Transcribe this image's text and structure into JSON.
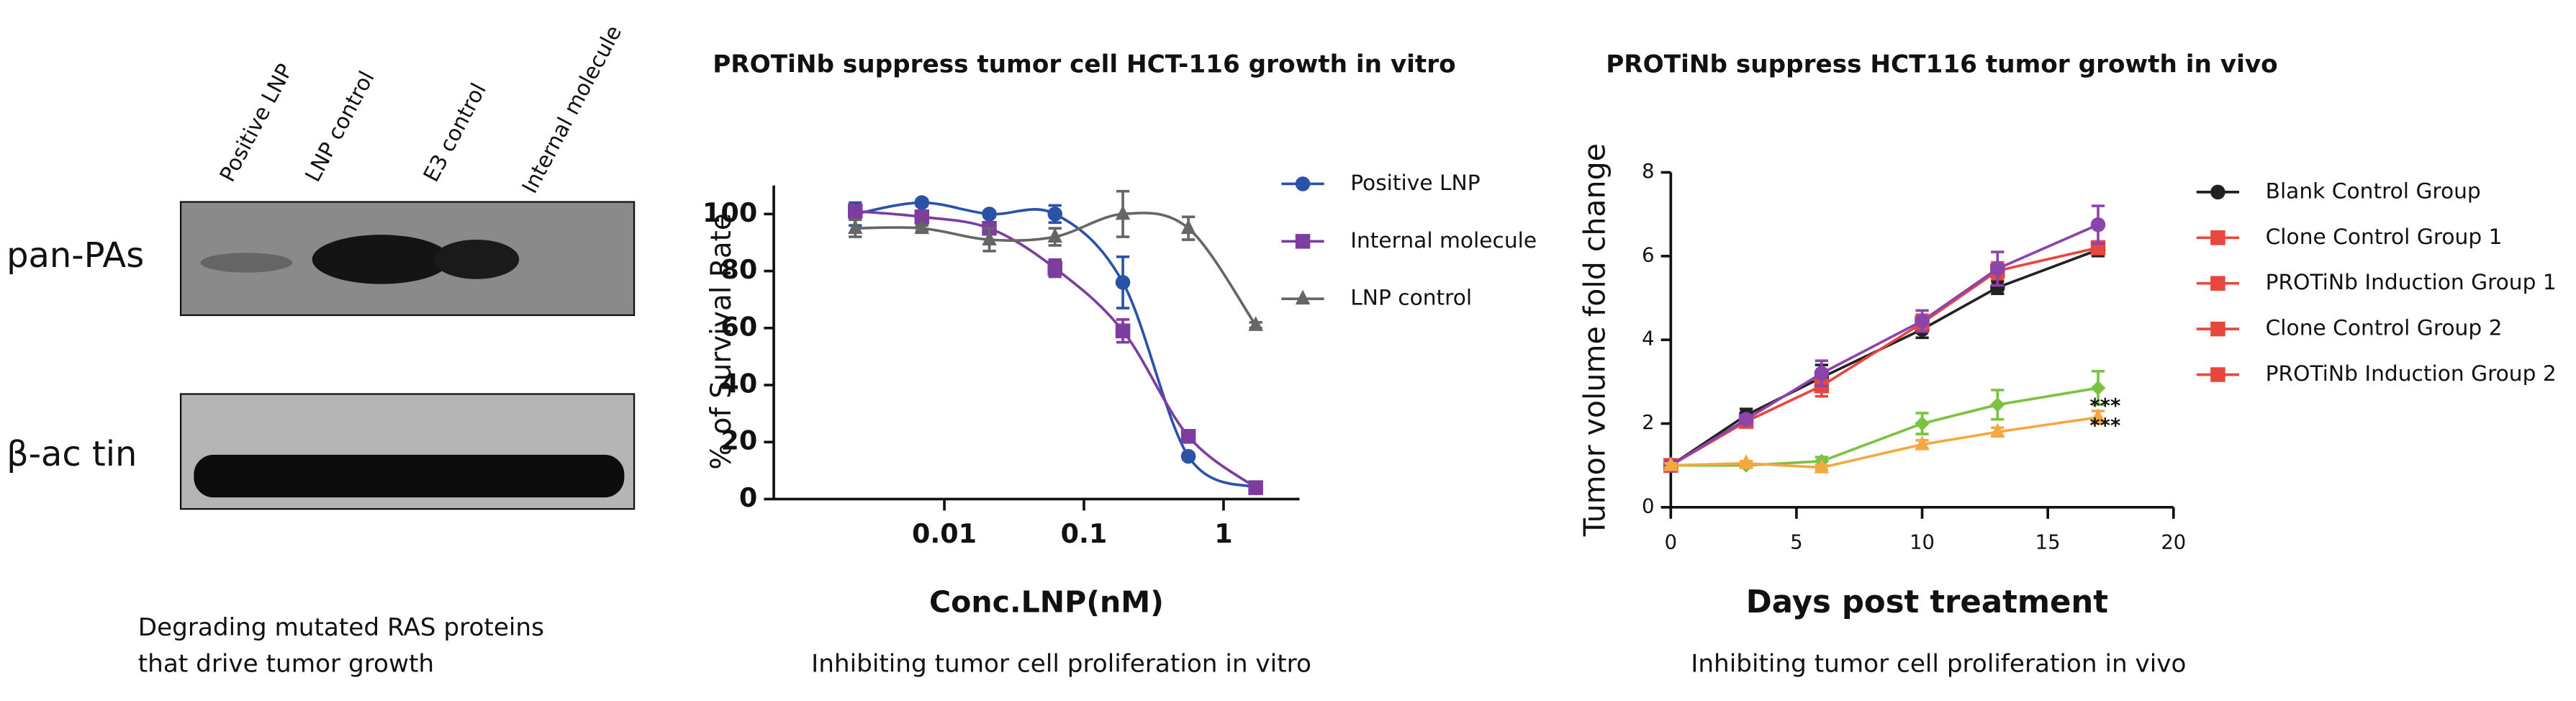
{
  "blot": {
    "lanes": [
      "Positive LNP",
      "LNP control",
      "E3 control",
      "Internal molecule"
    ],
    "rows": [
      "pan-PAs",
      "β-ac tin"
    ],
    "caption": [
      "Degrading mutated RAS proteins",
      "that drive tumor growth"
    ]
  },
  "chart_data": [
    {
      "type": "line",
      "title": "PROTiNb suppress tumor cell HCT-116 growth in vitro",
      "x_label": "Conc.LNP(nM)",
      "y_label": "% of Survival Rate",
      "caption": "Inhibiting tumor cell proliferation in vitro",
      "xscale": "log",
      "smooth": true,
      "x": [
        0.0023,
        0.0069,
        0.021,
        0.062,
        0.19,
        0.56,
        1.7
      ],
      "xlim": [
        0.0006,
        3.5
      ],
      "xticks": [
        0.01,
        0.1,
        1
      ],
      "ylim": [
        0,
        110
      ],
      "yticks": [
        0,
        20,
        40,
        60,
        80,
        100
      ],
      "series": [
        {
          "name": "Positive LNP",
          "color": "#2a52a6",
          "marker": "circle",
          "values": [
            100,
            104,
            100,
            100,
            76,
            15,
            4
          ],
          "errors": [
            4,
            1,
            1,
            3,
            9,
            1,
            1
          ]
        },
        {
          "name": "Internal molecule",
          "color": "#7d3d9f",
          "marker": "square",
          "values": [
            101,
            99,
            95,
            81,
            59,
            22,
            4
          ],
          "errors": [
            2,
            2,
            2,
            3,
            4,
            1,
            1
          ]
        },
        {
          "name": "LNP control",
          "color": "#666666",
          "marker": "triangle",
          "values": [
            95,
            95,
            91,
            92,
            100,
            95,
            61
          ],
          "errors": [
            3,
            1,
            4,
            3,
            8,
            4,
            1
          ]
        }
      ]
    },
    {
      "type": "line",
      "title": "PROTiNb suppress HCT116 tumor growth in vivo",
      "x_label": "Days post treatment",
      "y_label": "Tumor volume fold change",
      "caption": "Inhibiting tumor cell proliferation in vivo",
      "x": [
        0,
        3,
        6,
        10,
        13,
        17
      ],
      "xlim": [
        0,
        20
      ],
      "xticks": [
        0,
        5,
        10,
        15,
        20
      ],
      "ylim": [
        0,
        8
      ],
      "yticks": [
        0,
        2,
        4,
        6,
        8
      ],
      "annotations": [
        "***",
        "***"
      ],
      "series": [
        {
          "name": "Blank Control Group",
          "color": "#222222",
          "legend_color": "#222222",
          "marker": "circle",
          "values": [
            1,
            2.2,
            3.1,
            4.25,
            5.25,
            6.15
          ],
          "errors": [
            0.05,
            0.15,
            0.3,
            0.2,
            0.15,
            0.15
          ]
        },
        {
          "name": "Clone Control Group 1",
          "color": "#e8473f",
          "legend_color": "#e8473f",
          "marker": "square",
          "values": [
            1,
            2.05,
            2.9,
            4.4,
            5.65,
            6.2
          ],
          "errors": [
            0.05,
            0.1,
            0.25,
            0.2,
            0.2,
            0.15
          ]
        },
        {
          "name": "PROTiNb Induction Group 1",
          "color": "#7cc242",
          "legend_color": "#e8473f",
          "marker": "diamond",
          "values": [
            1,
            1.0,
            1.1,
            2.0,
            2.45,
            2.85
          ],
          "errors": [
            0.05,
            0.05,
            0.1,
            0.25,
            0.35,
            0.4
          ]
        },
        {
          "name": "Clone Control Group 2",
          "color": "#8b44ac",
          "legend_color": "#e8473f",
          "marker": "circle",
          "values": [
            1,
            2.1,
            3.2,
            4.45,
            5.7,
            6.75
          ],
          "errors": [
            0.05,
            0.1,
            0.3,
            0.25,
            0.4,
            0.45
          ]
        },
        {
          "name": "PROTiNb Induction Group 2",
          "color": "#f5a742",
          "legend_color": "#e8473f",
          "marker": "triangle",
          "values": [
            1,
            1.05,
            0.95,
            1.5,
            1.8,
            2.15
          ],
          "errors": [
            0.05,
            0.05,
            0.05,
            0.1,
            0.1,
            0.15
          ]
        }
      ]
    }
  ]
}
